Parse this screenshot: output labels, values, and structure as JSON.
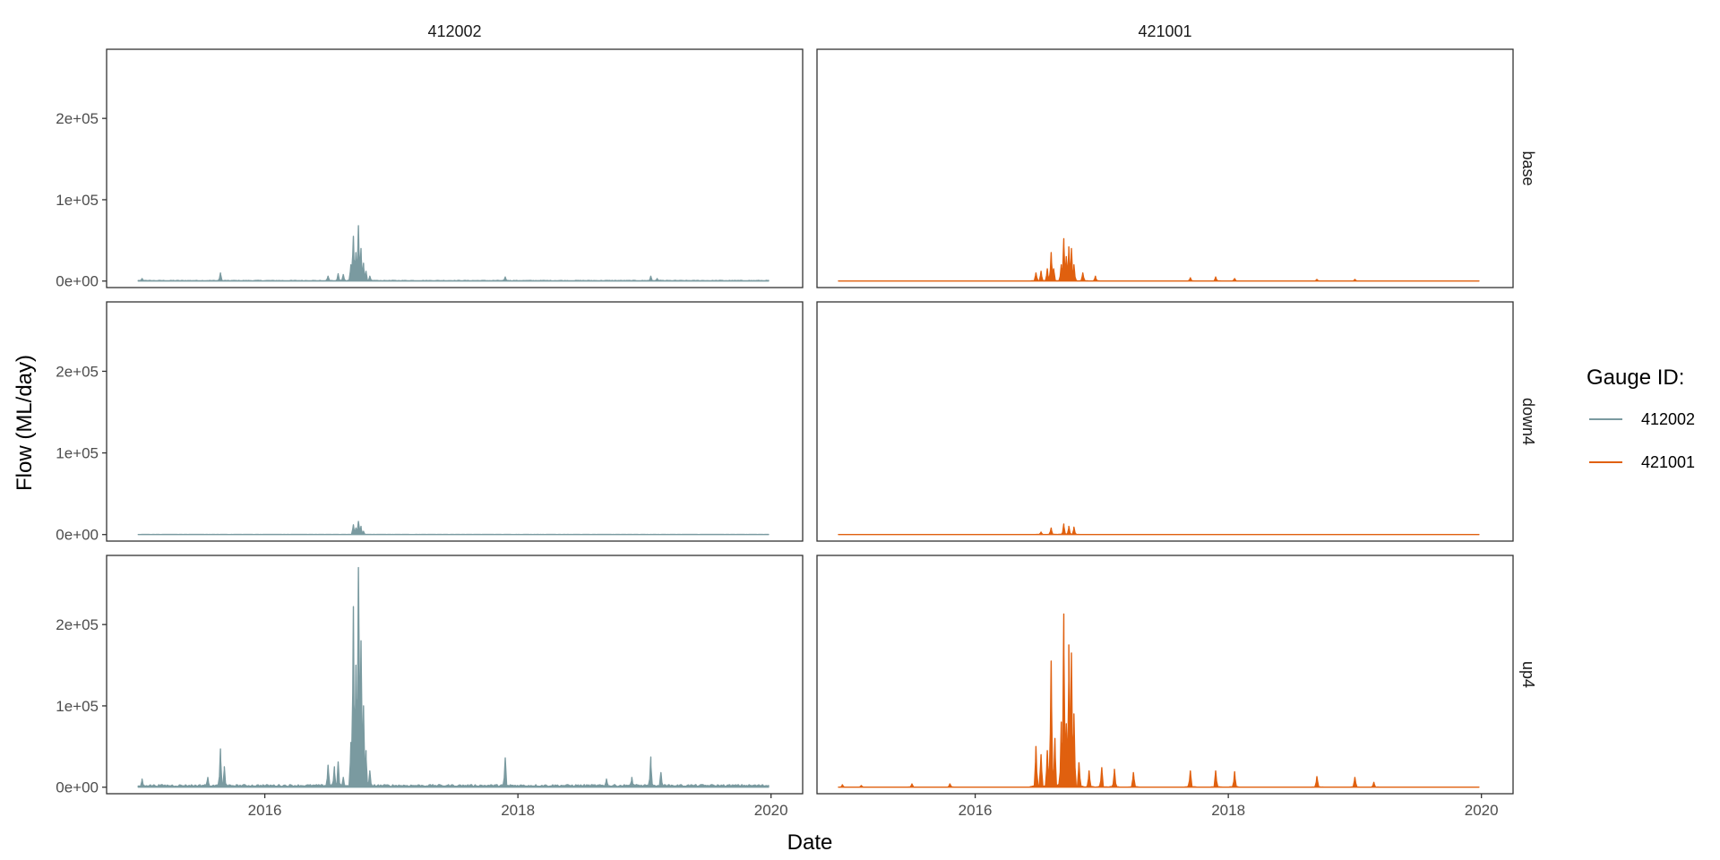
{
  "chart_data": {
    "type": "area",
    "xlabel": "Date",
    "ylabel": "Flow (ML/day)",
    "ylim": [
      -8000,
      285000
    ],
    "y_ticks": [
      {
        "value": 0,
        "label": "0e+00"
      },
      {
        "value": 100000,
        "label": "1e+05"
      },
      {
        "value": 200000,
        "label": "2e+05"
      }
    ],
    "x_ticks": [
      {
        "value": 2016,
        "label": "2016"
      },
      {
        "value": 2018,
        "label": "2018"
      },
      {
        "value": 2020,
        "label": "2020"
      }
    ],
    "facet_columns": [
      "412002",
      "421001"
    ],
    "facet_rows": [
      "base",
      "down4",
      "up4"
    ],
    "legend": {
      "title": "Gauge ID:",
      "placement": "right",
      "entries": [
        {
          "label": "412002",
          "color": "#7a9aa0"
        },
        {
          "label": "421001",
          "color": "#e0600f"
        }
      ]
    },
    "grid": false,
    "series": {
      "412002": {
        "color": "#7a9aa0",
        "x_range": [
          2015.0,
          2019.98
        ],
        "base": {
          "baseline": 500,
          "peaks": [
            [
              2015.03,
              3000
            ],
            [
              2015.65,
              10000
            ],
            [
              2016.5,
              6000
            ],
            [
              2016.58,
              9000
            ],
            [
              2016.62,
              8000
            ],
            [
              2016.68,
              20000
            ],
            [
              2016.7,
              55000
            ],
            [
              2016.72,
              35000
            ],
            [
              2016.74,
              68000
            ],
            [
              2016.76,
              40000
            ],
            [
              2016.78,
              22000
            ],
            [
              2016.8,
              12000
            ],
            [
              2016.83,
              6000
            ],
            [
              2017.9,
              5000
            ],
            [
              2019.05,
              6000
            ],
            [
              2019.1,
              3000
            ]
          ]
        },
        "down4": {
          "baseline": 100,
          "peaks": [
            [
              2016.7,
              12000
            ],
            [
              2016.72,
              8000
            ],
            [
              2016.74,
              16000
            ],
            [
              2016.76,
              10000
            ],
            [
              2016.78,
              4000
            ]
          ]
        },
        "up4": {
          "baseline": 2000,
          "peaks": [
            [
              2015.03,
              10000
            ],
            [
              2015.55,
              12000
            ],
            [
              2015.65,
              47000
            ],
            [
              2015.68,
              25000
            ],
            [
              2016.5,
              27000
            ],
            [
              2016.55,
              25000
            ],
            [
              2016.58,
              31000
            ],
            [
              2016.62,
              12000
            ],
            [
              2016.68,
              55000
            ],
            [
              2016.7,
              222000
            ],
            [
              2016.72,
              150000
            ],
            [
              2016.74,
              270000
            ],
            [
              2016.76,
              180000
            ],
            [
              2016.78,
              100000
            ],
            [
              2016.8,
              45000
            ],
            [
              2016.83,
              20000
            ],
            [
              2017.9,
              36000
            ],
            [
              2018.7,
              10000
            ],
            [
              2018.9,
              12000
            ],
            [
              2019.05,
              37000
            ],
            [
              2019.13,
              18000
            ]
          ]
        }
      },
      "421001": {
        "color": "#e0600f",
        "x_range": [
          2014.92,
          2019.98
        ],
        "base": {
          "baseline": 0,
          "peaks": [
            [
              2016.48,
              10000
            ],
            [
              2016.52,
              12000
            ],
            [
              2016.57,
              15000
            ],
            [
              2016.6,
              35000
            ],
            [
              2016.62,
              15000
            ],
            [
              2016.68,
              20000
            ],
            [
              2016.7,
              52000
            ],
            [
              2016.72,
              30000
            ],
            [
              2016.74,
              42000
            ],
            [
              2016.76,
              40000
            ],
            [
              2016.78,
              20000
            ],
            [
              2016.85,
              10000
            ],
            [
              2016.95,
              6000
            ],
            [
              2017.7,
              4000
            ],
            [
              2017.9,
              5000
            ],
            [
              2018.05,
              3000
            ],
            [
              2018.7,
              2000
            ],
            [
              2019.0,
              2000
            ]
          ]
        },
        "down4": {
          "baseline": 0,
          "peaks": [
            [
              2016.52,
              3000
            ],
            [
              2016.6,
              8000
            ],
            [
              2016.7,
              13000
            ],
            [
              2016.74,
              10000
            ],
            [
              2016.78,
              9000
            ]
          ]
        },
        "up4": {
          "baseline": 0,
          "peaks": [
            [
              2014.95,
              3000
            ],
            [
              2015.1,
              2000
            ],
            [
              2015.5,
              4000
            ],
            [
              2015.8,
              4000
            ],
            [
              2016.48,
              50000
            ],
            [
              2016.52,
              40000
            ],
            [
              2016.57,
              45000
            ],
            [
              2016.6,
              155000
            ],
            [
              2016.63,
              60000
            ],
            [
              2016.68,
              80000
            ],
            [
              2016.7,
              213000
            ],
            [
              2016.72,
              78000
            ],
            [
              2016.74,
              175000
            ],
            [
              2016.76,
              165000
            ],
            [
              2016.78,
              90000
            ],
            [
              2016.82,
              30000
            ],
            [
              2016.9,
              20000
            ],
            [
              2017.0,
              24000
            ],
            [
              2017.1,
              22000
            ],
            [
              2017.25,
              18000
            ],
            [
              2017.7,
              20000
            ],
            [
              2017.9,
              20000
            ],
            [
              2018.05,
              19000
            ],
            [
              2018.7,
              13000
            ],
            [
              2019.0,
              12000
            ],
            [
              2019.15,
              6000
            ]
          ]
        }
      }
    }
  }
}
